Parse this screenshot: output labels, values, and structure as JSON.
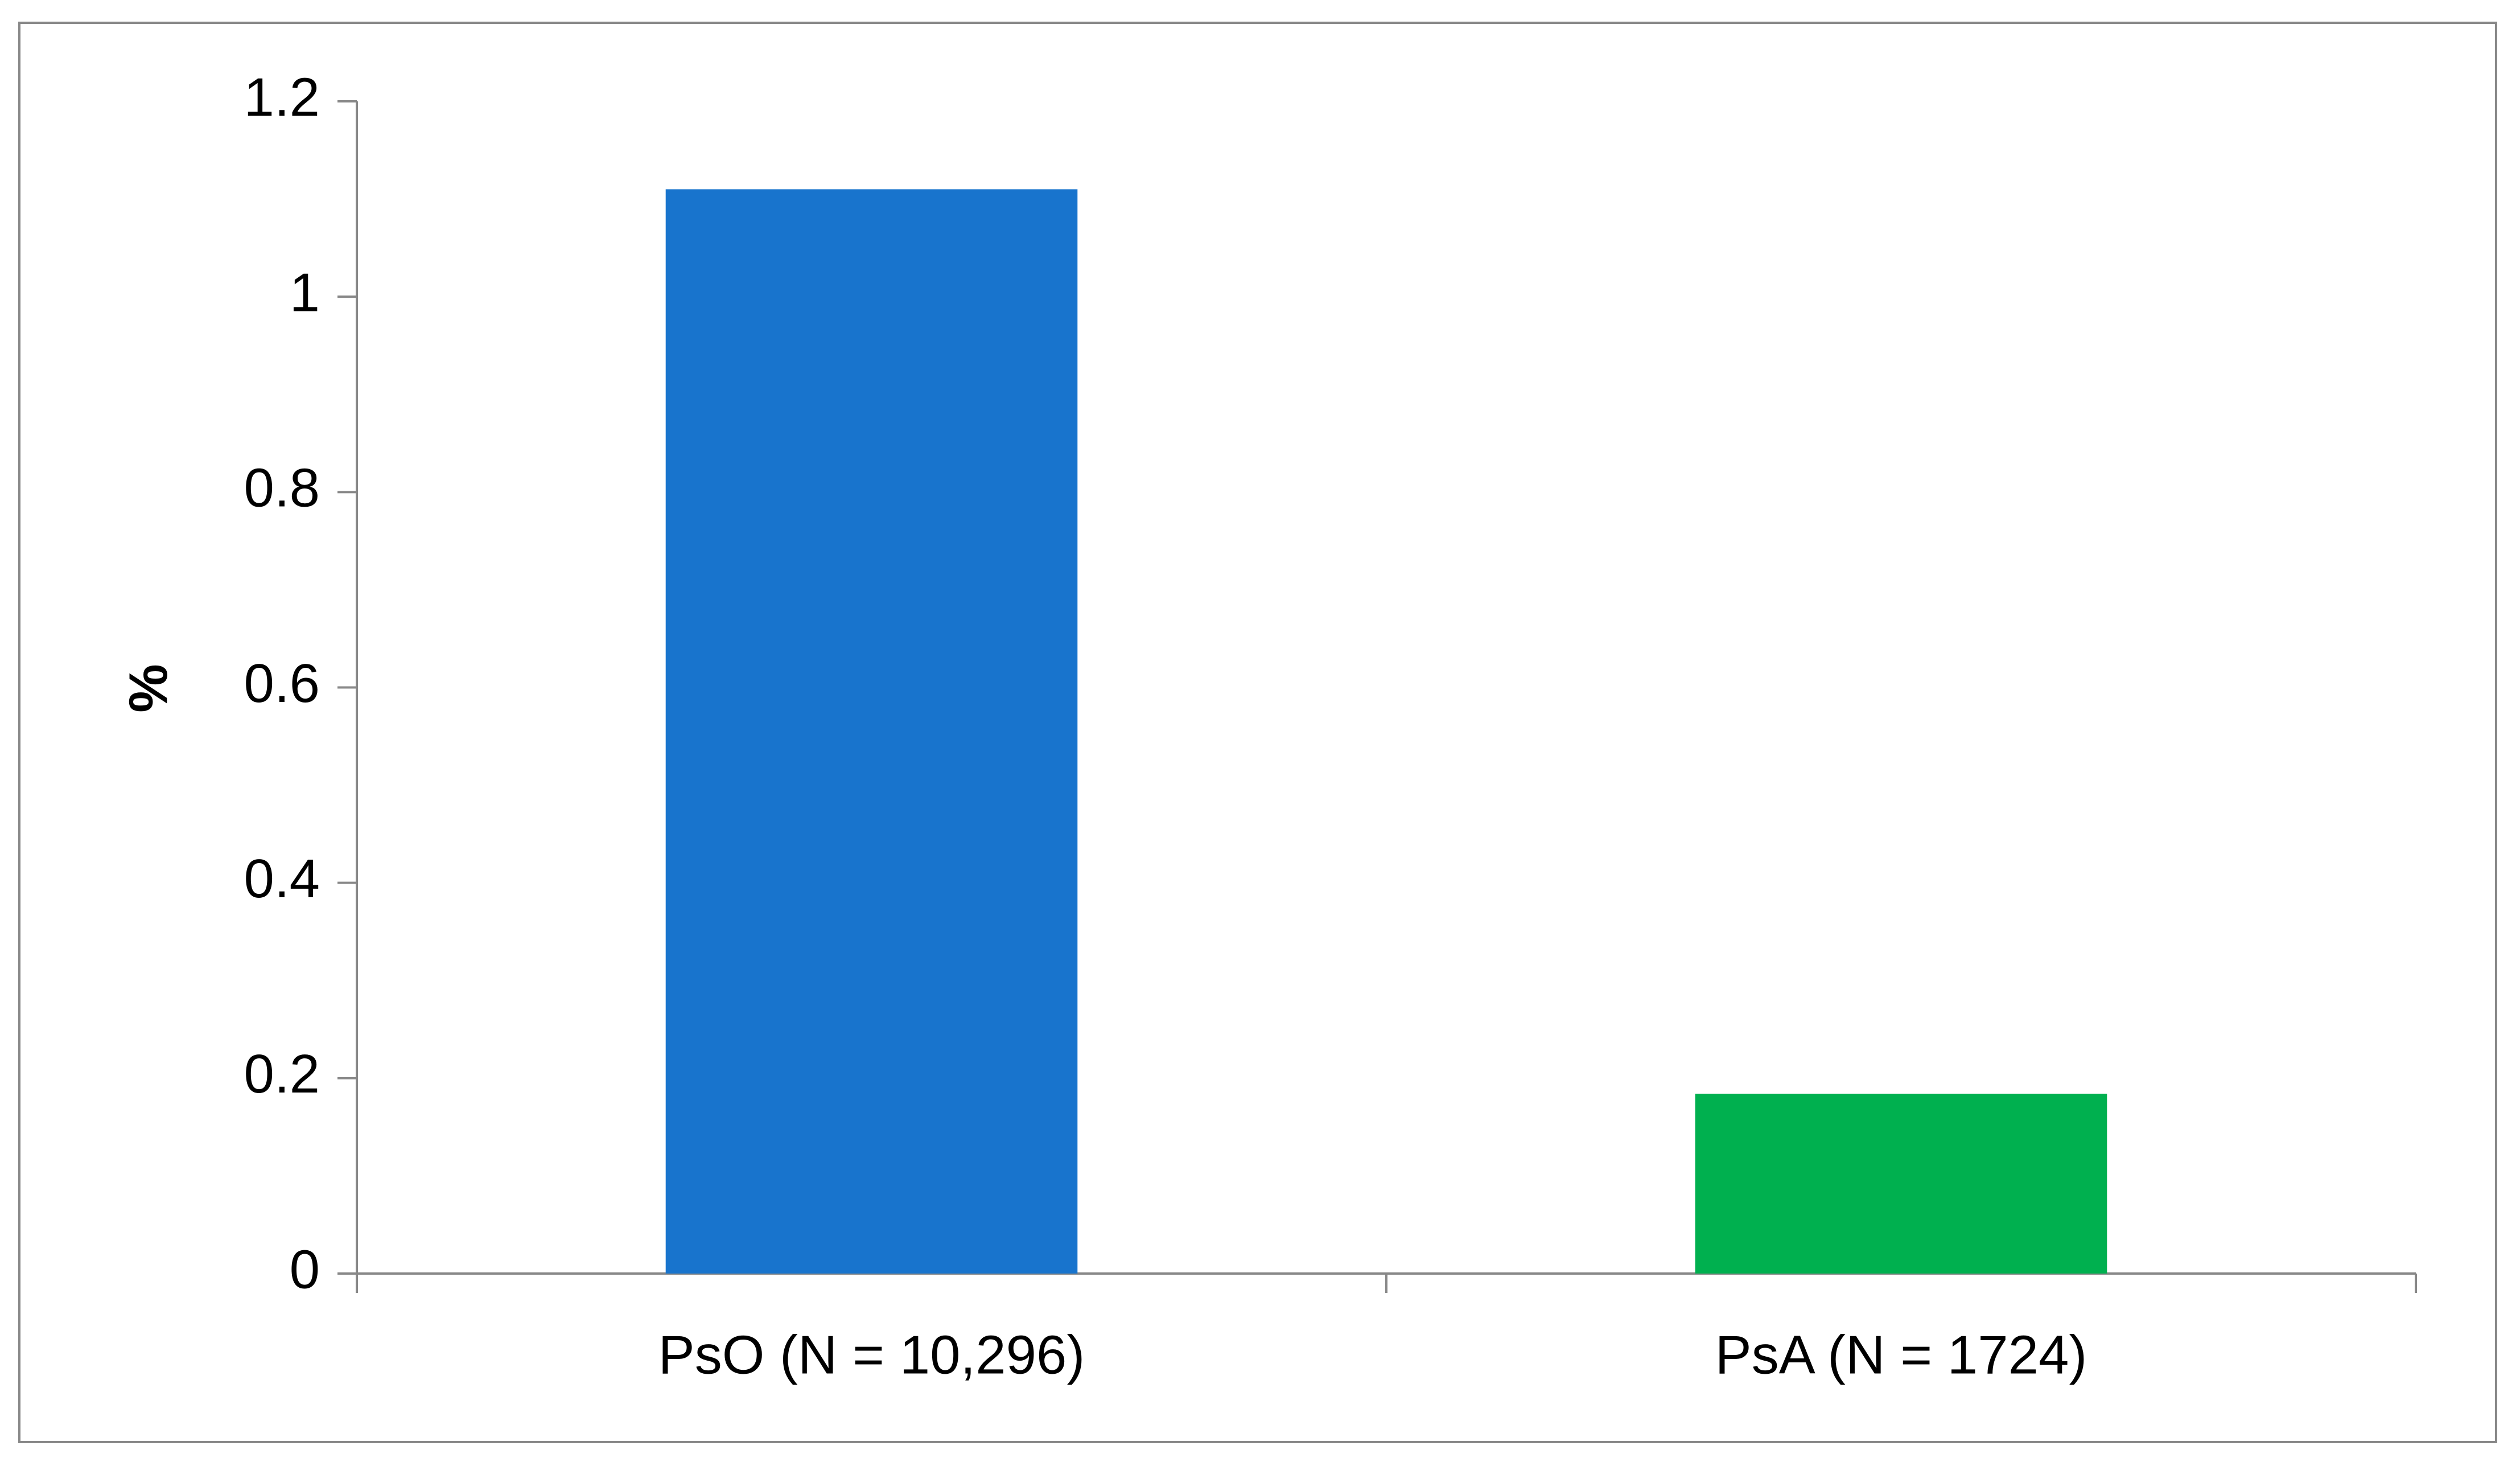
{
  "chart_data": {
    "type": "bar",
    "ylabel": "%",
    "categories": [
      "PsO (N = 10,296)",
      "PsA (N = 1724)"
    ],
    "values": [
      1.11,
      0.184
    ],
    "colors": [
      "#1874cd",
      "#00b04f"
    ],
    "ylim": [
      0,
      1.2
    ],
    "yticks": [
      0,
      0.2,
      0.4,
      0.6,
      0.8,
      1,
      1.2
    ],
    "grid": false
  }
}
